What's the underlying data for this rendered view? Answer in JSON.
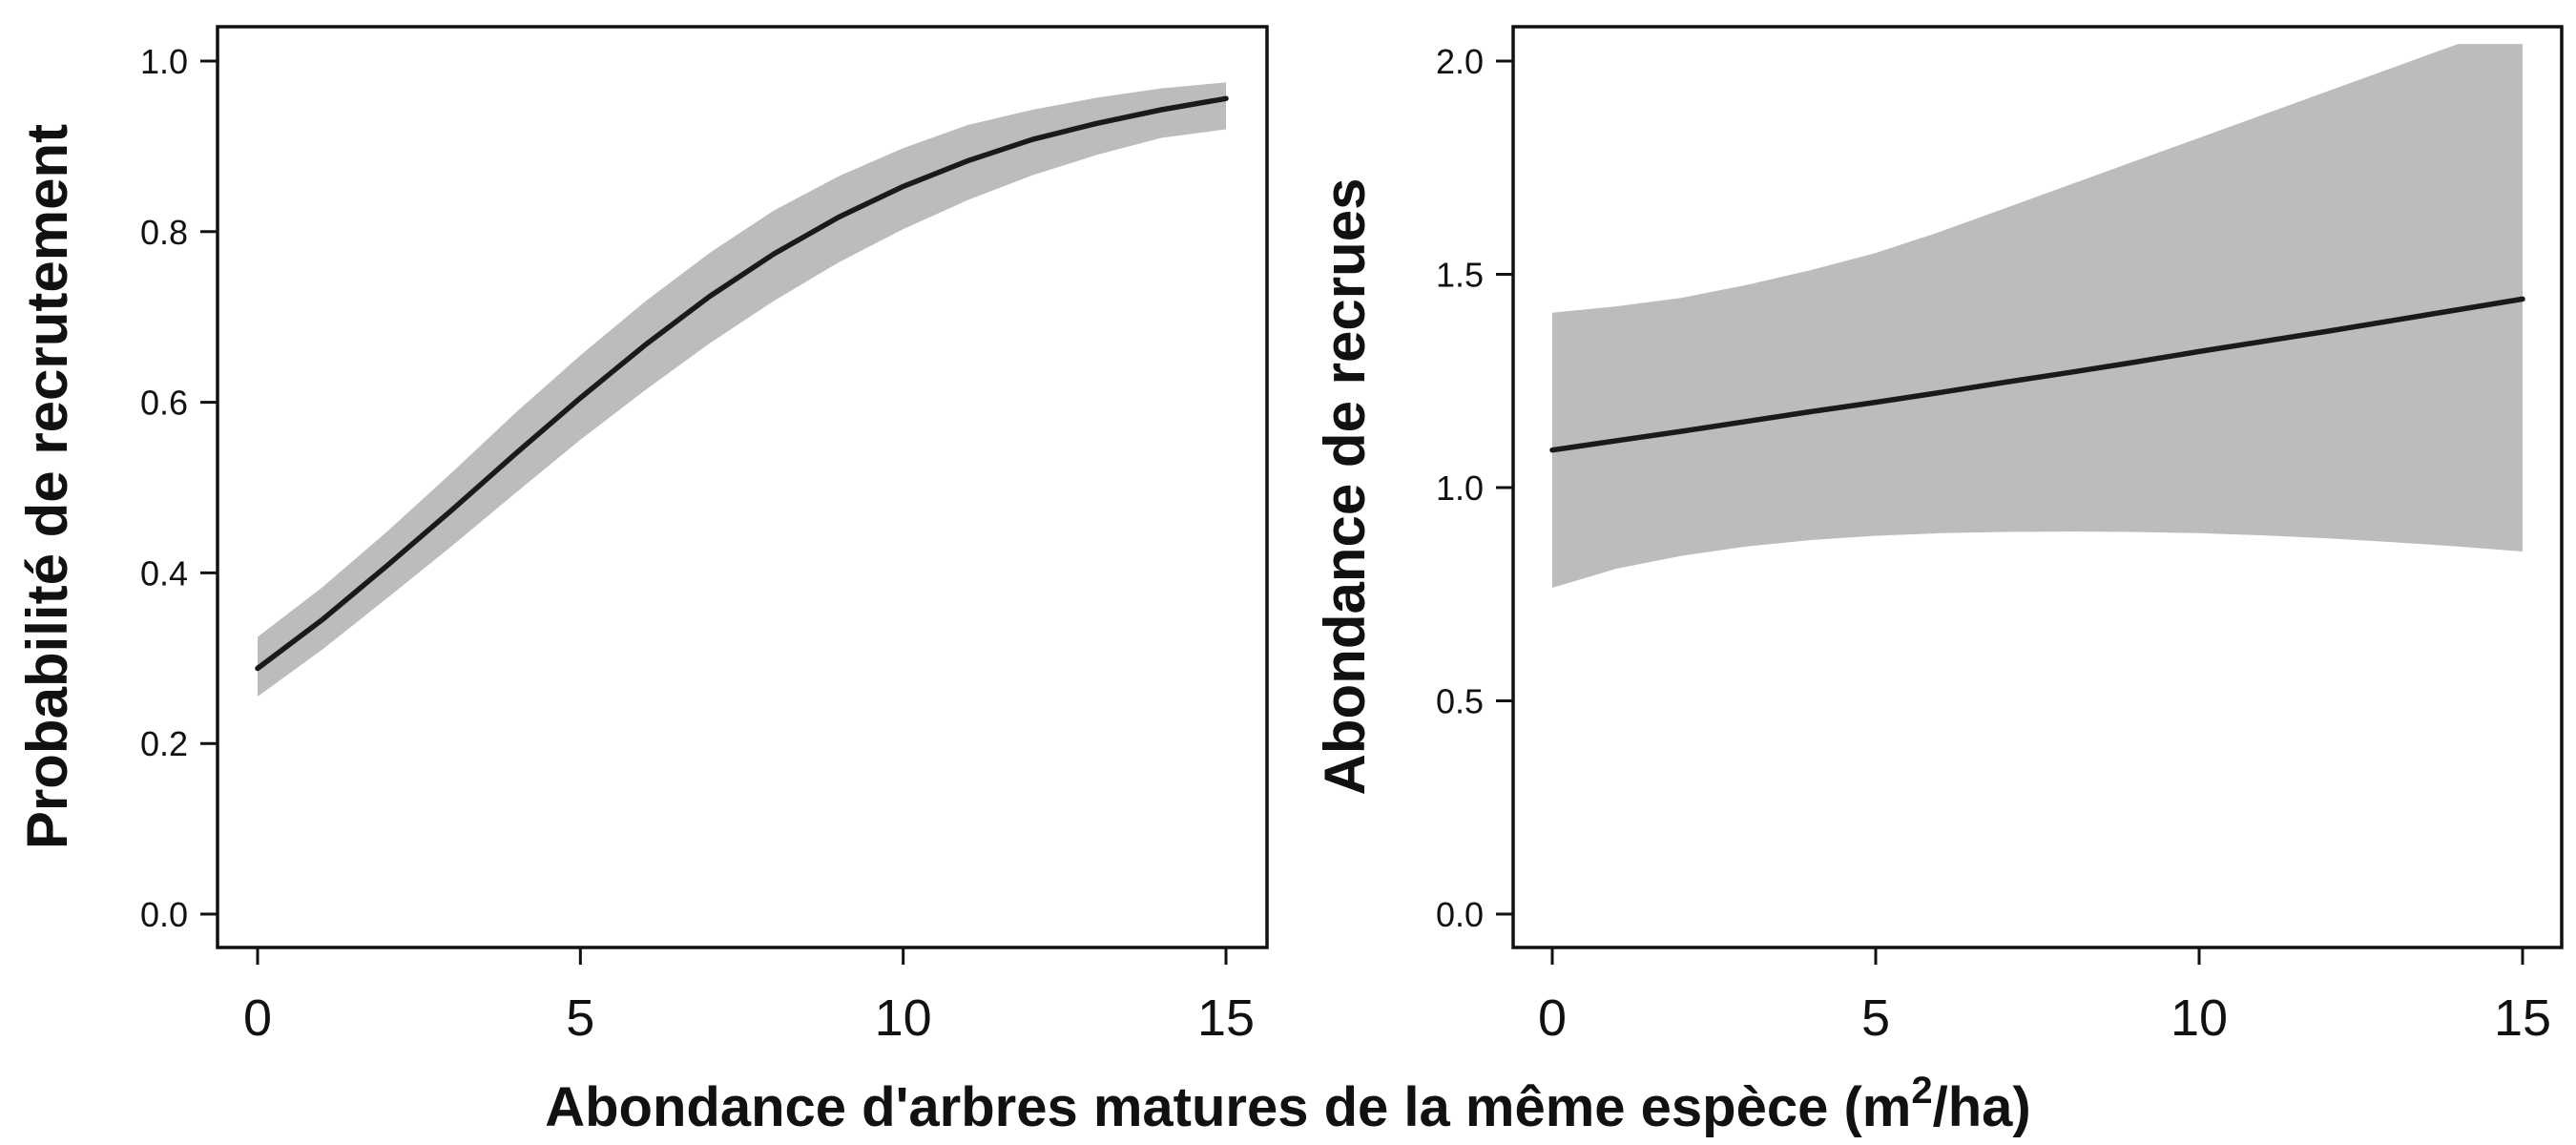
{
  "figure": {
    "xlabel_main": "Abondance d'arbres matures de la même espèce (m",
    "xlabel_sup": "2",
    "xlabel_end": "/ha)"
  },
  "chart_data": [
    {
      "type": "line",
      "title": "",
      "ylabel": "Probabilité de recrutement",
      "xlim": [
        0,
        15
      ],
      "ylim": [
        0,
        1
      ],
      "x_ticks": [
        "0",
        "5",
        "10",
        "15"
      ],
      "y_ticks": [
        "0.0",
        "0.2",
        "0.4",
        "0.6",
        "0.8",
        "1.0"
      ],
      "grid": false,
      "series": [
        {
          "x": [
            0,
            1,
            2,
            3,
            4,
            5,
            6,
            7,
            8,
            9,
            10,
            11,
            12,
            13,
            14,
            15
          ],
          "y": [
            0.288,
            0.345,
            0.408,
            0.473,
            0.54,
            0.605,
            0.667,
            0.724,
            0.774,
            0.817,
            0.853,
            0.883,
            0.908,
            0.927,
            0.943,
            0.956
          ],
          "lower": [
            0.255,
            0.31,
            0.37,
            0.431,
            0.494,
            0.556,
            0.614,
            0.669,
            0.719,
            0.764,
            0.803,
            0.837,
            0.866,
            0.89,
            0.91,
            0.92
          ],
          "upper": [
            0.325,
            0.383,
            0.448,
            0.517,
            0.588,
            0.655,
            0.718,
            0.775,
            0.825,
            0.865,
            0.898,
            0.925,
            0.943,
            0.957,
            0.968,
            0.975
          ]
        }
      ]
    },
    {
      "type": "line",
      "title": "",
      "ylabel": "Abondance de recrues",
      "xlim": [
        0,
        15
      ],
      "ylim": [
        0,
        2.0
      ],
      "x_ticks": [
        "0",
        "5",
        "10",
        "15"
      ],
      "y_ticks": [
        "0.0",
        "0.5",
        "1.0",
        "1.5",
        "2.0"
      ],
      "grid": false,
      "series": [
        {
          "x": [
            0,
            1,
            2,
            3,
            4,
            5,
            6,
            7,
            8,
            9,
            10,
            11,
            12,
            13,
            14,
            15
          ],
          "y": [
            1.088,
            1.11,
            1.132,
            1.155,
            1.178,
            1.2,
            1.223,
            1.247,
            1.27,
            1.294,
            1.319,
            1.343,
            1.367,
            1.392,
            1.417,
            1.442
          ],
          "lower": [
            0.765,
            0.81,
            0.84,
            0.862,
            0.877,
            0.887,
            0.893,
            0.896,
            0.897,
            0.896,
            0.893,
            0.888,
            0.881,
            0.872,
            0.862,
            0.85
          ],
          "upper": [
            1.41,
            1.425,
            1.445,
            1.475,
            1.51,
            1.55,
            1.6,
            1.655,
            1.71,
            1.765,
            1.82,
            1.875,
            1.93,
            1.985,
            2.04,
            2.04
          ]
        }
      ]
    }
  ]
}
